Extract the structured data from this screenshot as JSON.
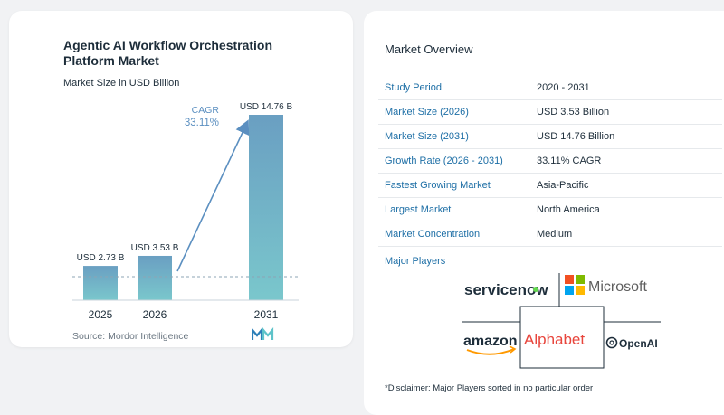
{
  "chart": {
    "title": "Agentic AI Workflow Orchestration Platform Market",
    "subtitle": "Market Size in USD Billion",
    "cagr_label": "CAGR",
    "cagr_value": "33.11%",
    "source": "Source:  Mordor Intelligence"
  },
  "chart_data": {
    "type": "bar",
    "title": "Agentic AI Workflow Orchestration Platform Market",
    "subtitle": "Market Size in USD Billion",
    "categories": [
      "2025",
      "2026",
      "2031"
    ],
    "values": [
      2.73,
      3.53,
      14.76
    ],
    "data_labels": [
      "USD 2.73 B",
      "USD 3.53 B",
      "USD 14.76 B"
    ],
    "unit": "USD Billion",
    "ylim": [
      0,
      15
    ],
    "annotation": "CAGR 33.11%",
    "grid": false,
    "legend": "none",
    "colors": {
      "bar_top": "#6a9fc2",
      "bar_bottom": "#7ac7cc",
      "arrow": "#5b8fc0",
      "baseline": "#8da4b4"
    }
  },
  "overview": {
    "title": "Market Overview",
    "rows": [
      {
        "label": "Study Period",
        "value": "2020 - 2031"
      },
      {
        "label": "Market Size (2026)",
        "value": "USD 3.53 Billion"
      },
      {
        "label": "Market Size (2031)",
        "value": "USD 14.76 Billion"
      },
      {
        "label": "Growth Rate (2026 - 2031)",
        "value": "33.11% CAGR"
      },
      {
        "label": "Fastest Growing Market",
        "value": "Asia-Pacific"
      },
      {
        "label": "Largest Market",
        "value": "North America"
      },
      {
        "label": "Market Concentration",
        "value": "Medium"
      }
    ]
  },
  "players": {
    "title": "Major Players",
    "logos": [
      "servicenow",
      "Microsoft",
      "amazon",
      "Alphabet",
      "OpenAI"
    ],
    "disclaimer": "*Disclaimer: Major Players sorted in no particular order"
  },
  "colors": {
    "accent": "#1e6fa6",
    "text": "#1d2d3a",
    "muted": "#6b7782"
  },
  "icons": {
    "source_logo": "mordor-logo-icon",
    "openai_logo": "openai-logo-icon",
    "microsoft_logo": "microsoft-logo-icon"
  }
}
